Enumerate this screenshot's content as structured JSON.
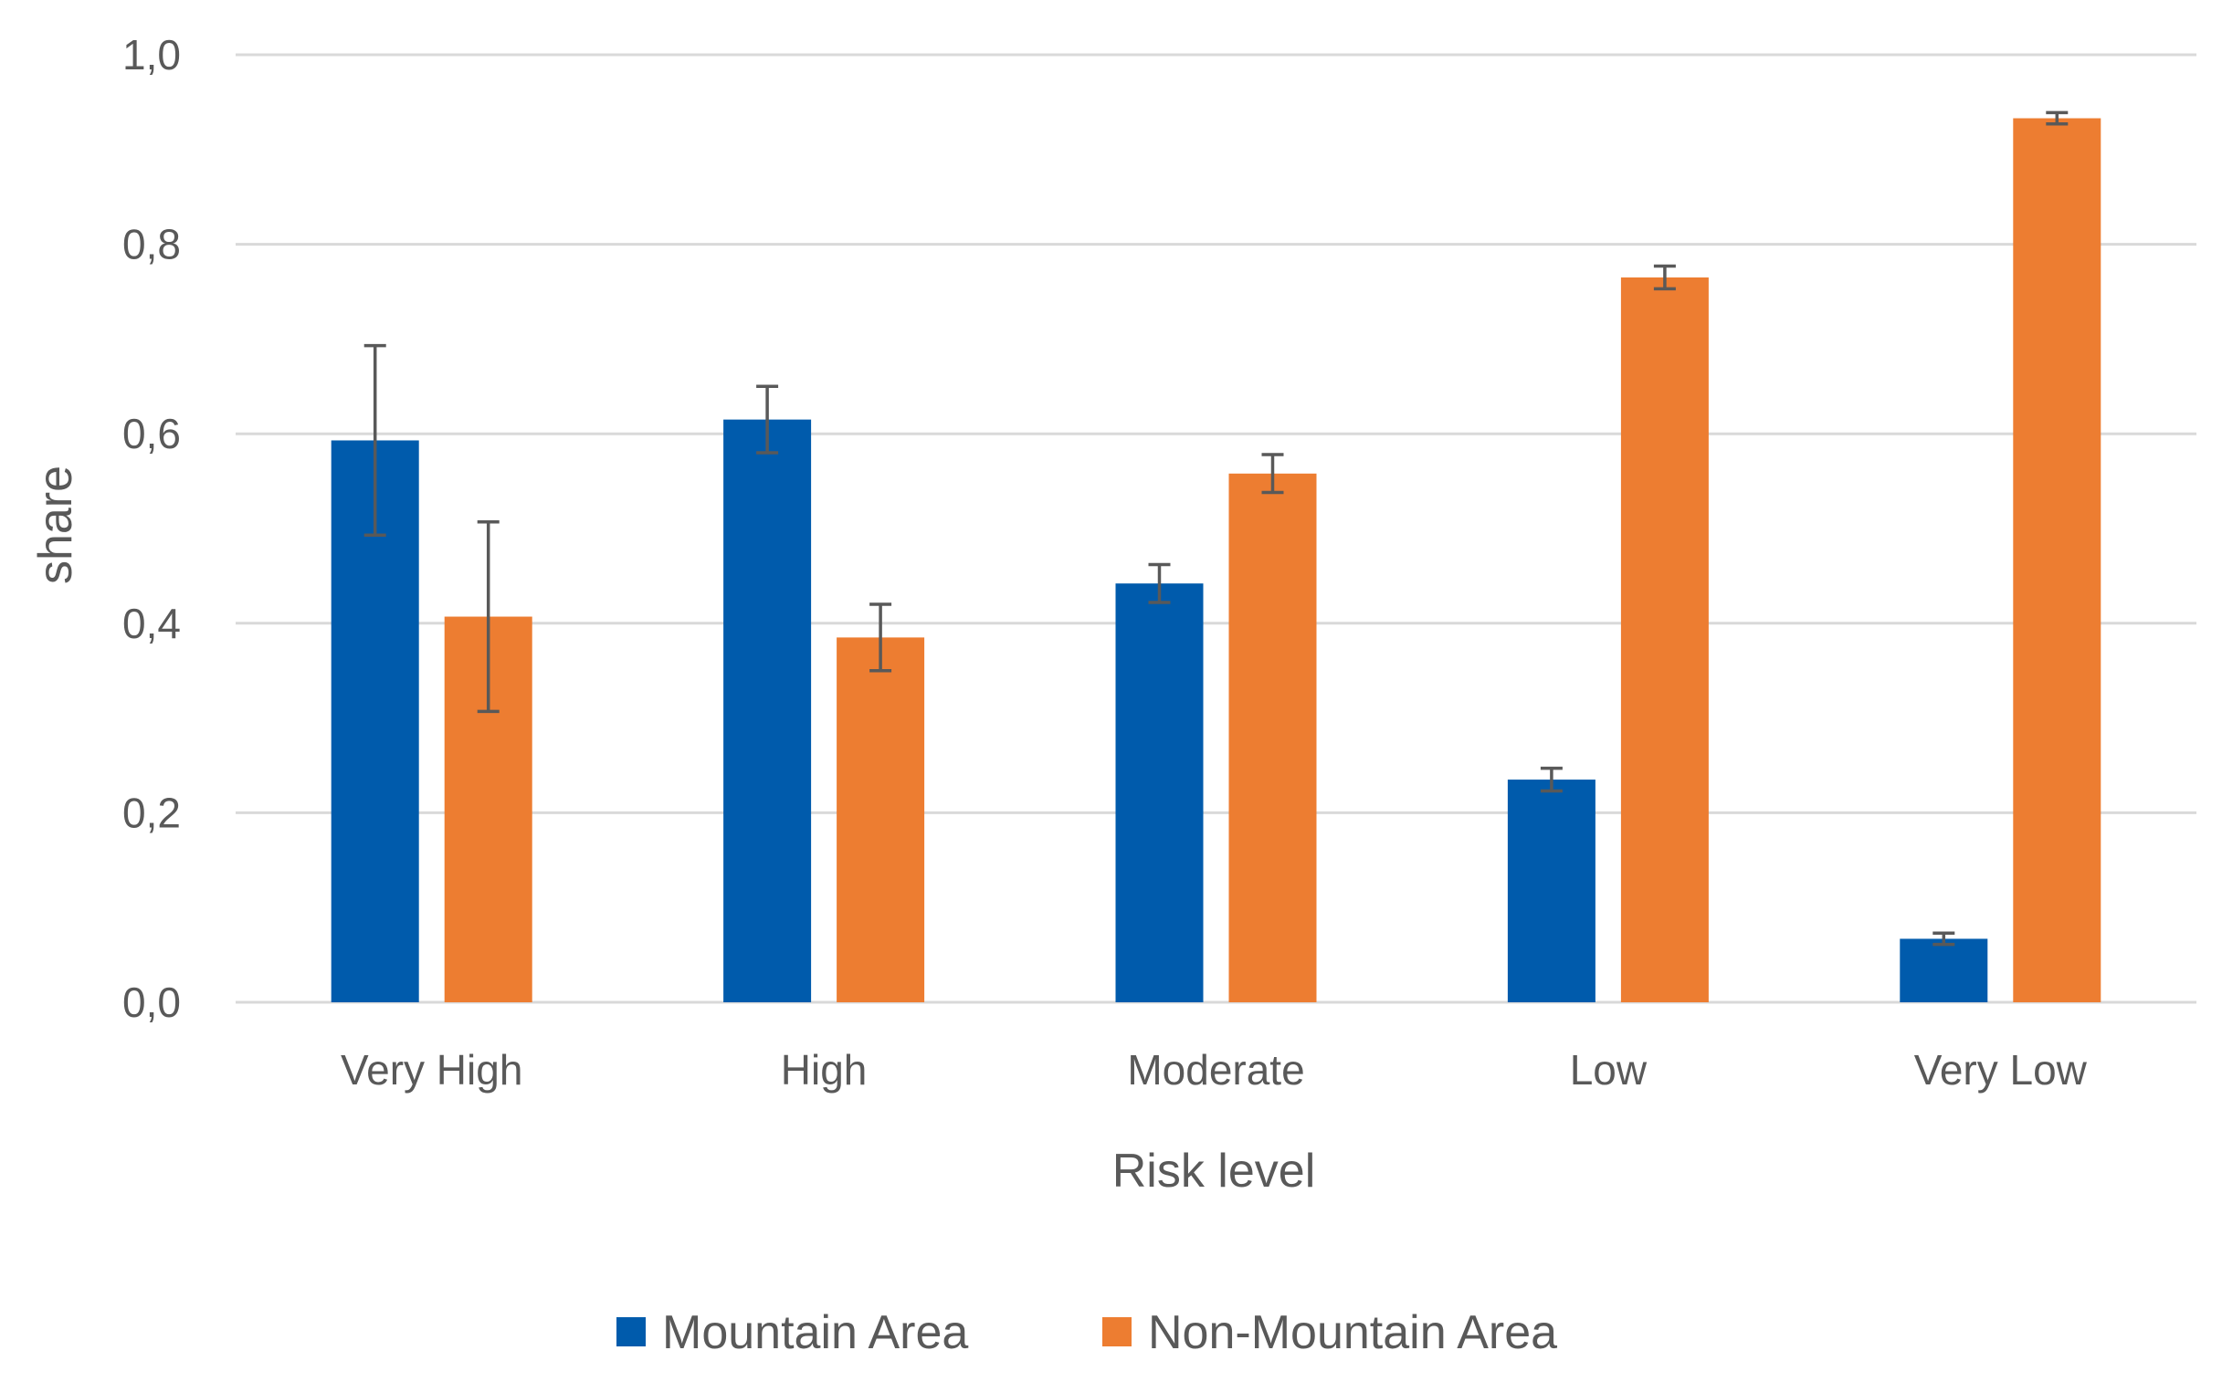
{
  "chart_data": {
    "type": "bar",
    "title": "",
    "xlabel": "Risk level",
    "ylabel": "share",
    "ylim": [
      0,
      1
    ],
    "yticks": [
      0,
      0.2,
      0.4,
      0.6,
      0.8,
      1.0
    ],
    "ytick_labels": [
      "0,0",
      "0,2",
      "0,4",
      "0,6",
      "0,8",
      "1,0"
    ],
    "grid": true,
    "legend_position": "bottom",
    "categories": [
      "Very High",
      "High",
      "Moderate",
      "Low",
      "Very Low"
    ],
    "series": [
      {
        "name": "Mountain Area",
        "color": "#005bac",
        "values": [
          0.593,
          0.615,
          0.442,
          0.235,
          0.067
        ],
        "error": [
          0.1,
          0.035,
          0.02,
          0.012,
          0.006
        ]
      },
      {
        "name": "Non-Mountain Area",
        "color": "#ed7d31",
        "values": [
          0.407,
          0.385,
          0.558,
          0.765,
          0.933
        ],
        "error": [
          0.1,
          0.035,
          0.02,
          0.012,
          0.006
        ]
      }
    ]
  }
}
